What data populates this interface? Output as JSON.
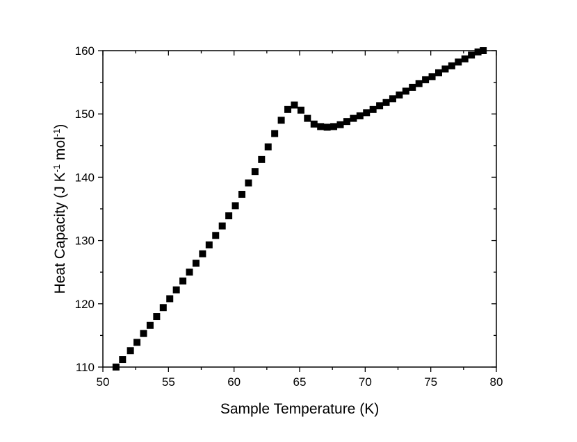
{
  "chart_data": {
    "type": "scatter",
    "xlabel": "Sample Temperature (K)",
    "ylabel": {
      "prefix": "Heat Capacity (J K",
      "sup1": "-1",
      "middle": " mol",
      "sup2": "-1",
      "suffix": ")"
    },
    "xlim": [
      50,
      80
    ],
    "ylim": [
      110,
      160
    ],
    "xticks": [
      "50",
      "55",
      "60",
      "65",
      "70",
      "75",
      "80"
    ],
    "yticks": [
      "110",
      "120",
      "130",
      "140",
      "150",
      "160"
    ],
    "marker": "square",
    "color": "#000000",
    "grid": false,
    "points": [
      [
        51.0,
        110.0
      ],
      [
        51.5,
        111.2
      ],
      [
        52.1,
        112.6
      ],
      [
        52.6,
        113.9
      ],
      [
        53.1,
        115.3
      ],
      [
        53.6,
        116.6
      ],
      [
        54.1,
        118.0
      ],
      [
        54.6,
        119.4
      ],
      [
        55.1,
        120.8
      ],
      [
        55.6,
        122.2
      ],
      [
        56.1,
        123.6
      ],
      [
        56.6,
        125.0
      ],
      [
        57.1,
        126.4
      ],
      [
        57.6,
        127.9
      ],
      [
        58.1,
        129.3
      ],
      [
        58.6,
        130.8
      ],
      [
        59.1,
        132.3
      ],
      [
        59.6,
        133.9
      ],
      [
        60.1,
        135.5
      ],
      [
        60.6,
        137.3
      ],
      [
        61.1,
        139.1
      ],
      [
        61.6,
        140.9
      ],
      [
        62.1,
        142.8
      ],
      [
        62.6,
        144.8
      ],
      [
        63.1,
        146.9
      ],
      [
        63.6,
        149.0
      ],
      [
        64.1,
        150.7
      ],
      [
        64.6,
        151.4
      ],
      [
        65.1,
        150.6
      ],
      [
        65.6,
        149.3
      ],
      [
        66.1,
        148.4
      ],
      [
        66.6,
        148.0
      ],
      [
        67.1,
        147.9
      ],
      [
        67.6,
        148.0
      ],
      [
        68.1,
        148.3
      ],
      [
        68.6,
        148.8
      ],
      [
        69.1,
        149.3
      ],
      [
        69.6,
        149.7
      ],
      [
        70.1,
        150.2
      ],
      [
        70.6,
        150.7
      ],
      [
        71.1,
        151.3
      ],
      [
        71.6,
        151.8
      ],
      [
        72.1,
        152.4
      ],
      [
        72.6,
        153.0
      ],
      [
        73.1,
        153.6
      ],
      [
        73.6,
        154.2
      ],
      [
        74.1,
        154.8
      ],
      [
        74.6,
        155.4
      ],
      [
        75.1,
        155.9
      ],
      [
        75.6,
        156.5
      ],
      [
        76.1,
        157.1
      ],
      [
        76.6,
        157.6
      ],
      [
        77.1,
        158.2
      ],
      [
        77.6,
        158.7
      ],
      [
        78.1,
        159.3
      ],
      [
        78.6,
        159.8
      ],
      [
        79.0,
        160.0
      ]
    ]
  }
}
